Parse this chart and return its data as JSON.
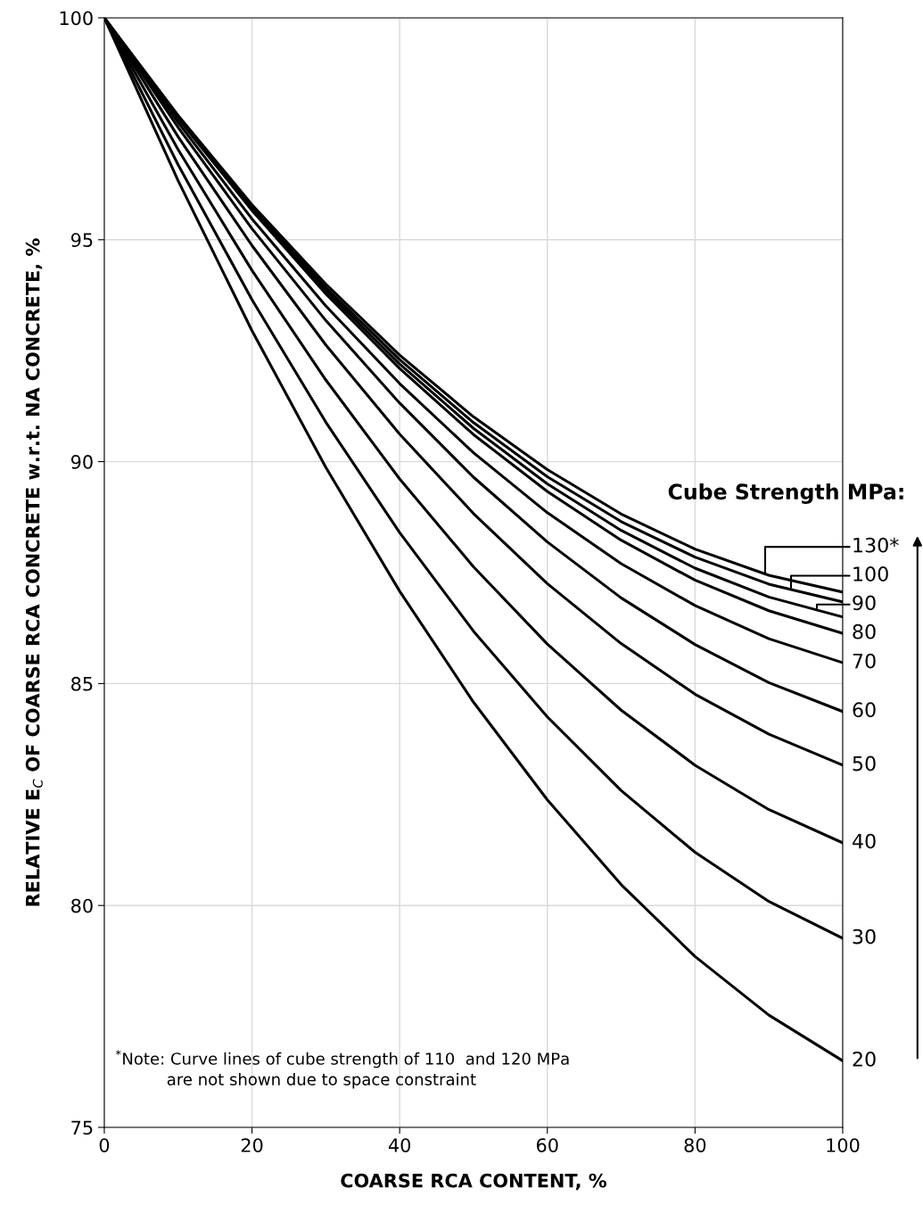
{
  "chart_data": {
    "type": "line",
    "xlabel": "COARSE RCA CONTENT, %",
    "ylabel": "RELATIVE E$_{C}$ OF COARSE RCA CONCRETE w.r.t. NA CONCRETE, %",
    "legend_title": "Cube Strength MPa:",
    "x": [
      0,
      10,
      20,
      30,
      40,
      50,
      60,
      70,
      80,
      90,
      100
    ],
    "series": [
      {
        "name": "130*",
        "color": "#000000",
        "values": [
          100,
          97.8,
          95.79,
          94.0,
          92.4,
          91.01,
          89.82,
          88.82,
          88.03,
          87.44,
          87.06
        ]
      },
      {
        "name": "100",
        "color": "#000000",
        "values": [
          100,
          97.77,
          95.75,
          93.92,
          92.3,
          90.88,
          89.66,
          88.65,
          87.85,
          87.24,
          86.84
        ]
      },
      {
        "name": "90",
        "color": "#000000",
        "values": [
          100,
          97.75,
          95.7,
          93.85,
          92.2,
          90.75,
          89.5,
          88.45,
          87.6,
          86.95,
          86.5
        ]
      },
      {
        "name": "80",
        "color": "#000000",
        "values": [
          100,
          97.73,
          95.66,
          93.78,
          92.1,
          90.61,
          89.33,
          88.23,
          87.33,
          86.64,
          86.13
        ]
      },
      {
        "name": "70",
        "color": "#000000",
        "values": [
          100,
          97.64,
          95.47,
          93.51,
          91.76,
          90.2,
          88.85,
          87.7,
          86.76,
          86.01,
          85.47
        ]
      },
      {
        "name": "60",
        "color": "#000000",
        "values": [
          100,
          97.53,
          95.25,
          93.18,
          91.32,
          89.65,
          88.19,
          86.93,
          85.88,
          85.02,
          84.37
        ]
      },
      {
        "name": "50",
        "color": "#000000",
        "values": [
          100,
          97.32,
          94.87,
          92.63,
          90.62,
          88.83,
          87.25,
          85.9,
          84.76,
          83.86,
          83.16
        ]
      },
      {
        "name": "40",
        "color": "#000000",
        "values": [
          100,
          97.03,
          94.31,
          91.84,
          89.61,
          87.63,
          85.89,
          84.4,
          83.16,
          82.16,
          81.41
        ]
      },
      {
        "name": "30",
        "color": "#000000",
        "values": [
          100,
          96.69,
          93.65,
          90.89,
          88.4,
          86.18,
          84.25,
          82.59,
          81.2,
          80.09,
          79.26
        ]
      },
      {
        "name": "20",
        "color": "#000000",
        "values": [
          100,
          96.33,
          92.95,
          89.87,
          87.08,
          84.58,
          82.38,
          80.47,
          78.85,
          77.53,
          76.5
        ]
      }
    ],
    "xlim": [
      0,
      100
    ],
    "xticks": [
      0,
      20,
      40,
      60,
      80,
      100
    ],
    "ylim": [
      75,
      100
    ],
    "yticks": [
      75,
      80,
      85,
      90,
      95,
      100
    ],
    "grid": true,
    "legend": "right",
    "marker": "none",
    "line_style": "solid",
    "annotations": [
      "$^{*}$Note: Curve lines of cube strength of 110  and 120 MPa\n          are not shown due to space constraint"
    ]
  }
}
